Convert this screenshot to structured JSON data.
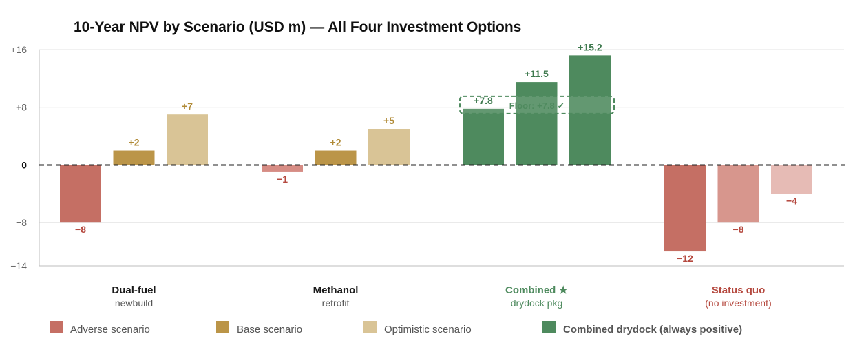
{
  "chart_data": {
    "type": "bar",
    "title": "10-Year NPV by Scenario (USD m) — All Four Investment Options",
    "ylim": [
      -14,
      16
    ],
    "yticks": [
      16,
      8,
      0,
      -8,
      -14
    ],
    "ytick_labels": [
      "+16",
      "+8",
      "0",
      "−8",
      "−14"
    ],
    "grid": true,
    "zero_line": "dashed",
    "groups": [
      {
        "name": "Dual-fuel",
        "subtitle": "newbuild",
        "name_color": "#1a1a1a",
        "sub_color": "#555555",
        "bars": [
          {
            "scenario": "Adverse",
            "value": -8,
            "label": "−8",
            "color": "#c56f64",
            "label_color": "#b5493f"
          },
          {
            "scenario": "Base",
            "value": 2,
            "label": "+2",
            "color": "#bb9548",
            "label_color": "#b08a36"
          },
          {
            "scenario": "Optimistic",
            "value": 7,
            "label": "+7",
            "color": "#d9c496",
            "label_color": "#b08a36"
          }
        ]
      },
      {
        "name": "Methanol",
        "subtitle": "retrofit",
        "name_color": "#1a1a1a",
        "sub_color": "#555555",
        "bars": [
          {
            "scenario": "Adverse",
            "value": -1,
            "label": "−1",
            "color": "#d68c84",
            "label_color": "#b5493f"
          },
          {
            "scenario": "Base",
            "value": 2,
            "label": "+2",
            "color": "#bb9548",
            "label_color": "#b08a36"
          },
          {
            "scenario": "Optimistic",
            "value": 5,
            "label": "+5",
            "color": "#d9c496",
            "label_color": "#b08a36"
          }
        ]
      },
      {
        "name": "Combined ★",
        "subtitle": "drydock pkg",
        "name_color": "#4e8a5e",
        "sub_color": "#4e8a5e",
        "bars": [
          {
            "scenario": "Adverse",
            "value": 7.8,
            "label": "+7.8",
            "color": "#4e8a5e",
            "label_color": "#3f7a4f"
          },
          {
            "scenario": "Base",
            "value": 11.5,
            "label": "+11.5",
            "color": "#4e8a5e",
            "label_color": "#3f7a4f"
          },
          {
            "scenario": "Optimistic",
            "value": 15.2,
            "label": "+15.2",
            "color": "#4e8a5e",
            "label_color": "#3f7a4f"
          }
        ]
      },
      {
        "name": "Status quo",
        "subtitle": "(no investment)",
        "name_color": "#b5493f",
        "sub_color": "#b5493f",
        "bars": [
          {
            "scenario": "Adverse",
            "value": -12,
            "label": "−12",
            "color": "#c56f64",
            "label_color": "#b5493f"
          },
          {
            "scenario": "Base",
            "value": -8,
            "label": "−8",
            "color": "#d7968d",
            "label_color": "#b5493f"
          },
          {
            "scenario": "Optimistic",
            "value": -4,
            "label": "−4",
            "color": "#e6bbb5",
            "label_color": "#b5493f"
          }
        ]
      }
    ],
    "annotation": {
      "text": "Floor: +7.8 ✓",
      "group": 2,
      "value": 7.8,
      "color": "#4e8a5e"
    },
    "legend": {
      "placement": "bottom",
      "items": [
        {
          "label": "Adverse scenario",
          "color": "#c56f64",
          "bold": false
        },
        {
          "label": "Base scenario",
          "color": "#bb9548",
          "bold": false
        },
        {
          "label": "Optimistic scenario",
          "color": "#d9c496",
          "bold": false
        },
        {
          "label": "Combined drydock (always positive)",
          "color": "#4e8a5e",
          "bold": true
        }
      ]
    }
  }
}
